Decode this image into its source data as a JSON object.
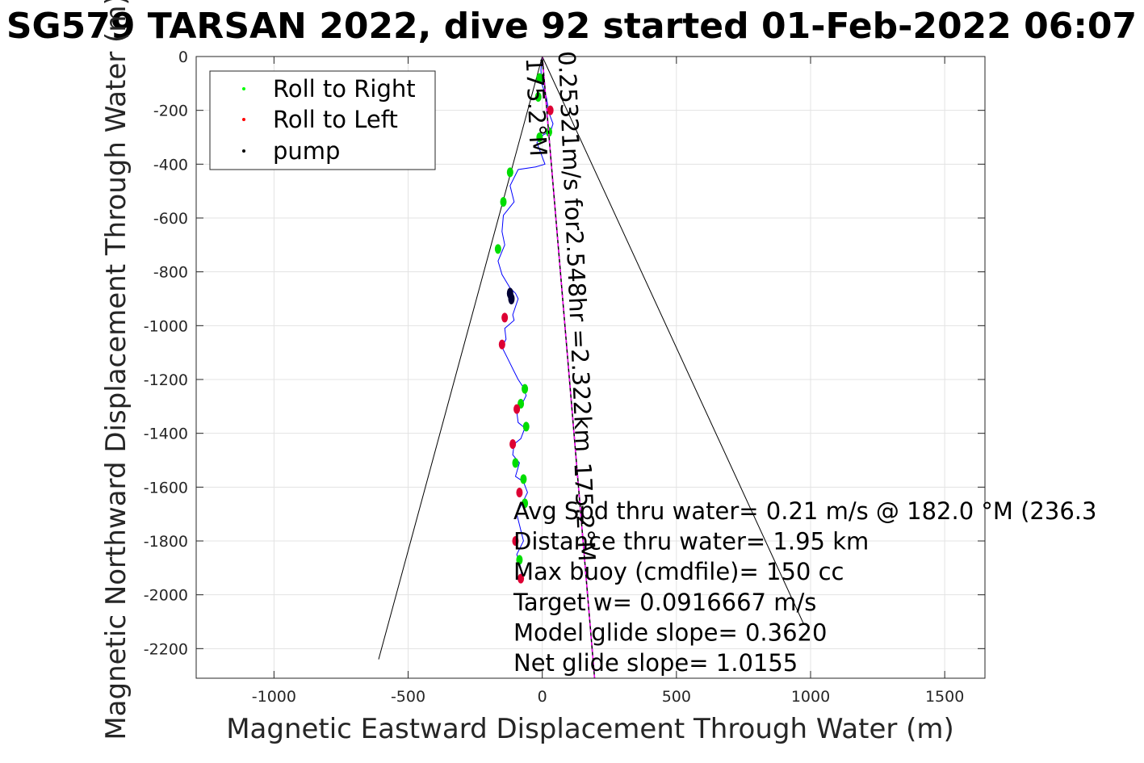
{
  "chart_data": {
    "type": "line",
    "title": "SG579 TARSAN 2022, dive 92 started 01-Feb-2022 06:07",
    "xlabel": "Magnetic Eastward Displacement Through Water (m)",
    "ylabel": "Magnetic Northward Displacement Through Water (m)",
    "xlim": [
      -1290,
      1650
    ],
    "ylim": [
      -2310,
      0
    ],
    "xticks": [
      -1000,
      -500,
      0,
      500,
      1000,
      1500
    ],
    "yticks": [
      0,
      -200,
      -400,
      -600,
      -800,
      -1000,
      -1200,
      -1400,
      -1600,
      -1800,
      -2000,
      -2200
    ],
    "grid": true,
    "legend": {
      "placement": "top-left",
      "entries": [
        {
          "label": "Roll to Right",
          "color": "#00ff00",
          "marker": "dot"
        },
        {
          "label": "Roll to Left",
          "color": "#ff0000",
          "marker": "dot"
        },
        {
          "label": "pump",
          "color": "#000000",
          "marker": "dot"
        }
      ]
    },
    "track": {
      "color": "#0000ff",
      "x": [
        0,
        -5,
        -2,
        15,
        25,
        40,
        30,
        5,
        -20,
        -5,
        10,
        -25,
        -90,
        -120,
        -105,
        -145,
        -150,
        -140,
        -165,
        -150,
        -120,
        -100,
        -90,
        -110,
        -105,
        -140,
        -135,
        -150,
        -130,
        -110,
        -90,
        -70,
        -60,
        -80,
        -95,
        -90,
        -65,
        -80,
        -105,
        -110,
        -85,
        -100,
        -70,
        -55,
        -75,
        -95,
        -80,
        -70,
        -95,
        -80,
        -75
      ],
      "y": [
        0,
        -50,
        -100,
        -150,
        -210,
        -250,
        -280,
        -290,
        -320,
        -360,
        -400,
        -410,
        -420,
        -480,
        -540,
        -590,
        -650,
        -700,
        -760,
        -810,
        -860,
        -880,
        -900,
        -960,
        -980,
        -1010,
        -1050,
        -1080,
        -1120,
        -1160,
        -1200,
        -1230,
        -1260,
        -1300,
        -1320,
        -1360,
        -1380,
        -1420,
        -1440,
        -1480,
        -1510,
        -1560,
        -1580,
        -1620,
        -1660,
        -1700,
        -1760,
        -1800,
        -1850,
        -1900,
        -1950
      ]
    },
    "roll_right": [
      [
        -10,
        -80
      ],
      [
        -15,
        -150
      ],
      [
        25,
        -280
      ],
      [
        -10,
        -300
      ],
      [
        -120,
        -430
      ],
      [
        -145,
        -540
      ],
      [
        -165,
        -715
      ],
      [
        -65,
        -1235
      ],
      [
        -80,
        -1290
      ],
      [
        -60,
        -1375
      ],
      [
        -100,
        -1510
      ],
      [
        -70,
        -1570
      ],
      [
        -65,
        -1660
      ],
      [
        -85,
        -1870
      ]
    ],
    "roll_left": [
      [
        30,
        -200
      ],
      [
        -140,
        -970
      ],
      [
        -150,
        -1070
      ],
      [
        -95,
        -1310
      ],
      [
        -110,
        -1440
      ],
      [
        -85,
        -1620
      ],
      [
        -100,
        -1800
      ],
      [
        -80,
        -1940
      ]
    ],
    "pump": [
      [
        -120,
        -880
      ],
      [
        -115,
        -900
      ]
    ],
    "heading_lines": [
      {
        "x": [
          0,
          -610
        ],
        "y": [
          0,
          -2240
        ]
      },
      {
        "x": [
          0,
          975
        ],
        "y": [
          0,
          -2110
        ]
      }
    ],
    "current_line": {
      "color": "#ff00ff",
      "x": [
        0,
        195
      ],
      "y": [
        0,
        -2310
      ]
    },
    "rotated_labels": [
      {
        "text": "175.2°M",
        "at": [
          30,
          -230
        ]
      },
      {
        "text": "0.25321m/s for2.548hr =2.322km",
        "at": [
          60,
          -230
        ]
      },
      {
        "text": "175.2°M",
        "at": [
          120,
          -1720
        ]
      }
    ],
    "annotations": [
      "Avg Spd thru water=  0.21 m/s @ 182.0 °M (236.3",
      "Distance thru water=  1.95 km",
      "Max buoy (cmdfile)= 150 cc",
      "Target w= 0.0916667 m/s",
      "Model glide slope= 0.3620",
      "Net glide slope= 1.0155"
    ]
  }
}
